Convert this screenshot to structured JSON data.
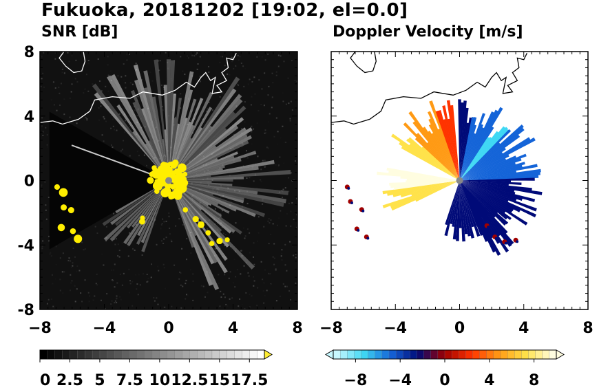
{
  "figure_title": "Fukuoka, 20181202 [19:02, el=0.0]",
  "chart_data": [
    {
      "type": "heatmap",
      "title": "SNR [dB]",
      "xlim": [
        -8,
        8
      ],
      "ylim": [
        -8,
        8
      ],
      "x_ticks": [
        -8,
        -4,
        0,
        4,
        8
      ],
      "y_ticks": [
        -8,
        -4,
        0,
        4,
        8
      ],
      "background_color": "#111111",
      "colorbar": {
        "range": [
          0,
          18.75
        ],
        "step": 0.625,
        "ticks": [
          0,
          2.5,
          5,
          7.5,
          10,
          12.5,
          15,
          17.5
        ],
        "tick_labels": [
          "0",
          "2.5",
          "5",
          "7.5",
          "10",
          "12.5",
          "15",
          "17.5"
        ],
        "extend": "max",
        "over_color": "#ffee33",
        "colors": [
          "#000000",
          "#ffffff"
        ]
      }
    },
    {
      "type": "heatmap",
      "title": "Doppler Velocity [m/s]",
      "xlim": [
        -8,
        8
      ],
      "ylim": [
        -8,
        8
      ],
      "x_ticks": [
        -8,
        -4,
        0,
        4,
        8
      ],
      "y_ticks": [
        -8,
        -4,
        0,
        4,
        8
      ],
      "background_color": "#ffffff",
      "colorbar": {
        "range": [
          -10,
          10
        ],
        "step": 0.625,
        "ticks": [
          -8,
          -4,
          0,
          4,
          8
        ],
        "tick_labels": [
          "−8",
          "−4",
          "0",
          "4",
          "8"
        ],
        "extend": "both",
        "colors": [
          "#c8f8ff",
          "#3fd8f4",
          "#1464d8",
          "#000a78",
          "#a00000",
          "#ff3300",
          "#ff9a14",
          "#ffe24a",
          "#fffde0"
        ]
      }
    }
  ],
  "colors": {
    "coastline_left": "#ffffff",
    "coastline_right": "#000000",
    "precip_echo": "#ffee00",
    "radar_center": "#888888"
  }
}
